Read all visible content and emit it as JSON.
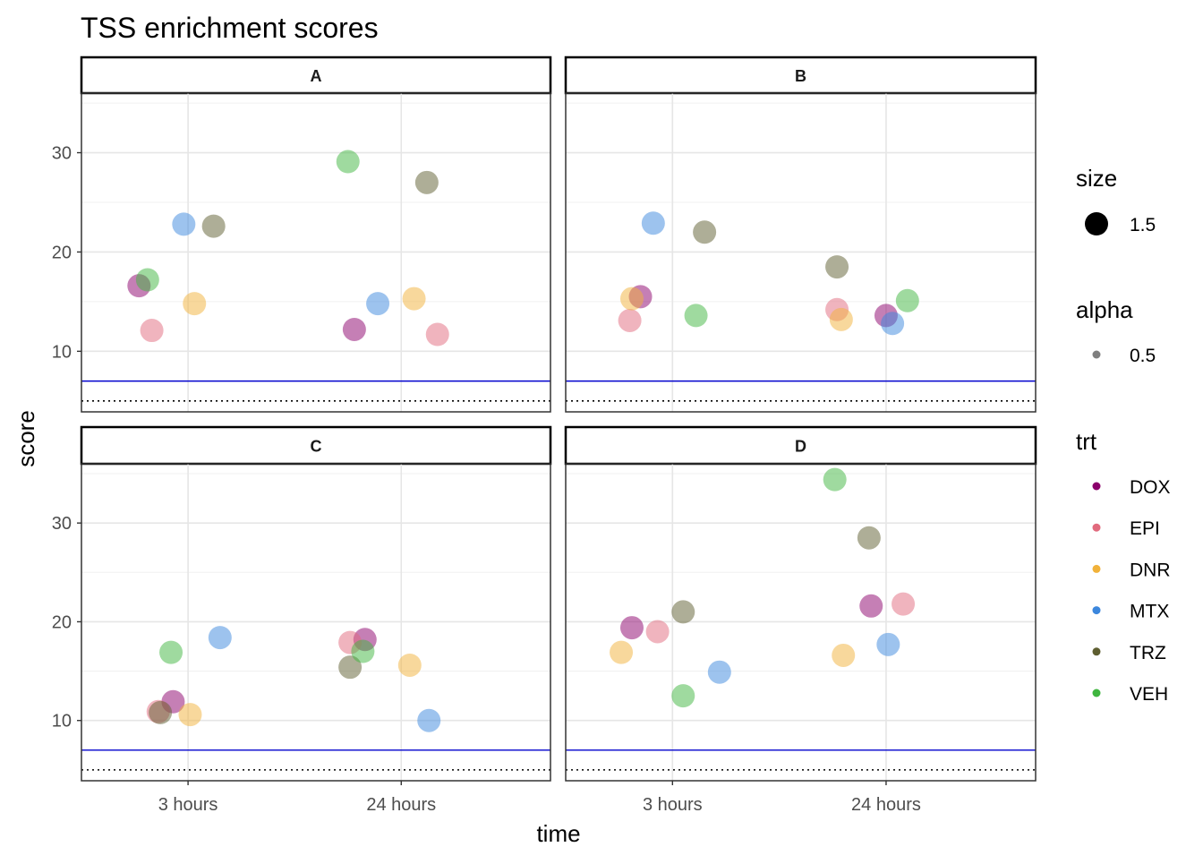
{
  "title": "TSS enrichment scores",
  "chart_data": {
    "type": "scatter",
    "title": "TSS enrichment scores",
    "xlabel": "time",
    "ylabel": "score",
    "x_categories": [
      "3 hours",
      "24 hours"
    ],
    "y_ticks": [
      10,
      20,
      30
    ],
    "ylim": [
      3.9,
      36.0
    ],
    "grid": true,
    "reference_lines": [
      {
        "style": "solid",
        "color": "#0000CD",
        "y": 7
      },
      {
        "style": "dotted",
        "color": "#000000",
        "y": 5
      }
    ],
    "legend_position": "right",
    "legends": {
      "size": {
        "title": "size",
        "value": "1.5"
      },
      "alpha": {
        "title": "alpha",
        "value": "0.5"
      },
      "trt": {
        "title": "trt",
        "entries": [
          {
            "label": "DOX",
            "color": "#8B006B"
          },
          {
            "label": "EPI",
            "color": "#E16A7D"
          },
          {
            "label": "DNR",
            "color": "#F1B23A"
          },
          {
            "label": "MTX",
            "color": "#3C87DD"
          },
          {
            "label": "TRZ",
            "color": "#5E5E30"
          },
          {
            "label": "VEH",
            "color": "#3FB53F"
          }
        ]
      }
    },
    "panels": [
      {
        "label": "A",
        "points": [
          {
            "trt": "DOX",
            "time": "3 hours",
            "jitter": -0.23,
            "y": 16.6
          },
          {
            "trt": "EPI",
            "time": "3 hours",
            "jitter": -0.17,
            "y": 12.1
          },
          {
            "trt": "DNR",
            "time": "3 hours",
            "jitter": 0.03,
            "y": 14.8
          },
          {
            "trt": "MTX",
            "time": "3 hours",
            "jitter": -0.02,
            "y": 22.8
          },
          {
            "trt": "TRZ",
            "time": "3 hours",
            "jitter": 0.12,
            "y": 22.6
          },
          {
            "trt": "VEH",
            "time": "3 hours",
            "jitter": -0.19,
            "y": 17.2
          },
          {
            "trt": "DOX",
            "time": "24 hours",
            "jitter": -0.22,
            "y": 12.2
          },
          {
            "trt": "EPI",
            "time": "24 hours",
            "jitter": 0.17,
            "y": 11.7
          },
          {
            "trt": "DNR",
            "time": "24 hours",
            "jitter": 0.06,
            "y": 15.3
          },
          {
            "trt": "MTX",
            "time": "24 hours",
            "jitter": -0.11,
            "y": 14.8
          },
          {
            "trt": "TRZ",
            "time": "24 hours",
            "jitter": 0.12,
            "y": 27.0
          },
          {
            "trt": "VEH",
            "time": "24 hours",
            "jitter": -0.25,
            "y": 29.1
          }
        ]
      },
      {
        "label": "B",
        "points": [
          {
            "trt": "DOX",
            "time": "3 hours",
            "jitter": -0.15,
            "y": 15.5
          },
          {
            "trt": "EPI",
            "time": "3 hours",
            "jitter": -0.2,
            "y": 13.1
          },
          {
            "trt": "DNR",
            "time": "3 hours",
            "jitter": -0.19,
            "y": 15.3
          },
          {
            "trt": "MTX",
            "time": "3 hours",
            "jitter": -0.09,
            "y": 22.9
          },
          {
            "trt": "TRZ",
            "time": "3 hours",
            "jitter": 0.15,
            "y": 22.0
          },
          {
            "trt": "VEH",
            "time": "3 hours",
            "jitter": 0.11,
            "y": 13.6
          },
          {
            "trt": "DOX",
            "time": "24 hours",
            "jitter": 0.0,
            "y": 13.6
          },
          {
            "trt": "EPI",
            "time": "24 hours",
            "jitter": -0.23,
            "y": 14.2
          },
          {
            "trt": "DNR",
            "time": "24 hours",
            "jitter": -0.21,
            "y": 13.2
          },
          {
            "trt": "MTX",
            "time": "24 hours",
            "jitter": 0.03,
            "y": 12.8
          },
          {
            "trt": "TRZ",
            "time": "24 hours",
            "jitter": -0.23,
            "y": 18.5
          },
          {
            "trt": "VEH",
            "time": "24 hours",
            "jitter": 0.1,
            "y": 15.1
          }
        ]
      },
      {
        "label": "C",
        "points": [
          {
            "trt": "DOX",
            "time": "3 hours",
            "jitter": -0.07,
            "y": 11.9
          },
          {
            "trt": "EPI",
            "time": "3 hours",
            "jitter": -0.14,
            "y": 10.9
          },
          {
            "trt": "DNR",
            "time": "3 hours",
            "jitter": 0.01,
            "y": 10.6
          },
          {
            "trt": "MTX",
            "time": "3 hours",
            "jitter": 0.15,
            "y": 18.4
          },
          {
            "trt": "TRZ",
            "time": "3 hours",
            "jitter": -0.13,
            "y": 10.8
          },
          {
            "trt": "VEH",
            "time": "3 hours",
            "jitter": -0.08,
            "y": 16.9
          },
          {
            "trt": "DOX",
            "time": "24 hours",
            "jitter": -0.17,
            "y": 18.2
          },
          {
            "trt": "EPI",
            "time": "24 hours",
            "jitter": -0.24,
            "y": 17.9
          },
          {
            "trt": "DNR",
            "time": "24 hours",
            "jitter": 0.04,
            "y": 15.6
          },
          {
            "trt": "MTX",
            "time": "24 hours",
            "jitter": 0.13,
            "y": 10.0
          },
          {
            "trt": "TRZ",
            "time": "24 hours",
            "jitter": -0.24,
            "y": 15.4
          },
          {
            "trt": "VEH",
            "time": "24 hours",
            "jitter": -0.18,
            "y": 17.0
          }
        ]
      },
      {
        "label": "D",
        "points": [
          {
            "trt": "DOX",
            "time": "3 hours",
            "jitter": -0.19,
            "y": 19.4
          },
          {
            "trt": "EPI",
            "time": "3 hours",
            "jitter": -0.07,
            "y": 19.0
          },
          {
            "trt": "DNR",
            "time": "3 hours",
            "jitter": -0.24,
            "y": 16.9
          },
          {
            "trt": "MTX",
            "time": "3 hours",
            "jitter": 0.22,
            "y": 14.9
          },
          {
            "trt": "TRZ",
            "time": "3 hours",
            "jitter": 0.05,
            "y": 21.0
          },
          {
            "trt": "VEH",
            "time": "3 hours",
            "jitter": 0.05,
            "y": 12.5
          },
          {
            "trt": "DOX",
            "time": "24 hours",
            "jitter": -0.07,
            "y": 21.6
          },
          {
            "trt": "EPI",
            "time": "24 hours",
            "jitter": 0.08,
            "y": 21.8
          },
          {
            "trt": "DNR",
            "time": "24 hours",
            "jitter": -0.2,
            "y": 16.6
          },
          {
            "trt": "MTX",
            "time": "24 hours",
            "jitter": 0.01,
            "y": 17.7
          },
          {
            "trt": "TRZ",
            "time": "24 hours",
            "jitter": -0.08,
            "y": 28.5
          },
          {
            "trt": "VEH",
            "time": "24 hours",
            "jitter": -0.24,
            "y": 34.4
          }
        ]
      }
    ]
  }
}
